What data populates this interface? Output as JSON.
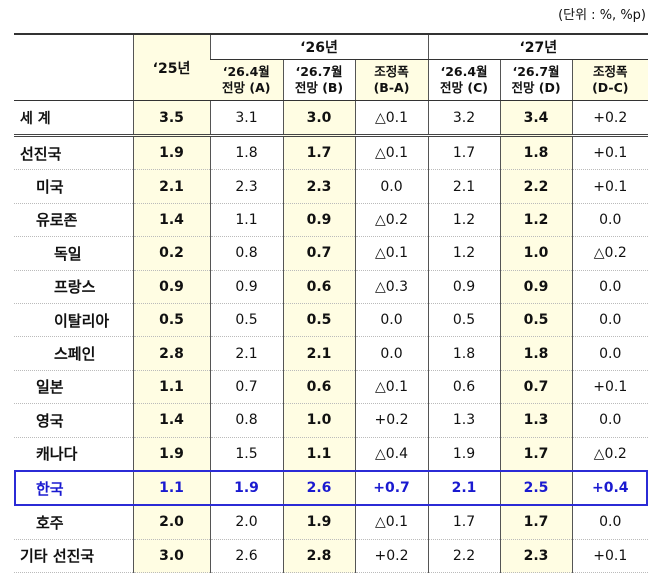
{
  "unit": "(단위 : %, %p)",
  "header": {
    "col25": "‘25년",
    "y26": "‘26년",
    "y27": "‘27년",
    "sub": [
      [
        "‘26.4월",
        "전망 (A)"
      ],
      [
        "‘26.7월",
        "전망 (B)"
      ],
      [
        "조정폭",
        "(B-A)"
      ],
      [
        "‘26.4월",
        "전망 (C)"
      ],
      [
        "‘26.7월",
        "전망 (D)"
      ],
      [
        "조정폭",
        "(D-C)"
      ]
    ]
  },
  "table": {
    "rows": [
      [
        "세  계",
        "3.5",
        "3.1",
        "3.0",
        "△0.1",
        "3.2",
        "3.4",
        "+0.2"
      ],
      [
        "선진국",
        "1.9",
        "1.8",
        "1.7",
        "△0.1",
        "1.7",
        "1.8",
        "+0.1"
      ],
      [
        "미국",
        "2.1",
        "2.3",
        "2.3",
        "0.0",
        "2.1",
        "2.2",
        "+0.1"
      ],
      [
        "유로존",
        "1.4",
        "1.1",
        "0.9",
        "△0.2",
        "1.2",
        "1.2",
        "0.0"
      ],
      [
        "독일",
        "0.2",
        "0.8",
        "0.7",
        "△0.1",
        "1.2",
        "1.0",
        "△0.2"
      ],
      [
        "프랑스",
        "0.9",
        "0.9",
        "0.6",
        "△0.3",
        "0.9",
        "0.9",
        "0.0"
      ],
      [
        "이탈리아",
        "0.5",
        "0.5",
        "0.5",
        "0.0",
        "0.5",
        "0.5",
        "0.0"
      ],
      [
        "스페인",
        "2.8",
        "2.1",
        "2.1",
        "0.0",
        "1.8",
        "1.8",
        "0.0"
      ],
      [
        "일본",
        "1.1",
        "0.7",
        "0.6",
        "△0.1",
        "0.6",
        "0.7",
        "+0.1"
      ],
      [
        "영국",
        "1.4",
        "0.8",
        "1.0",
        "+0.2",
        "1.3",
        "1.3",
        "0.0"
      ],
      [
        "캐나다",
        "1.9",
        "1.5",
        "1.1",
        "△0.4",
        "1.9",
        "1.7",
        "△0.2"
      ],
      [
        "한국",
        "1.1",
        "1.9",
        "2.6",
        "+0.7",
        "2.1",
        "2.5",
        "+0.4"
      ],
      [
        "호주",
        "2.0",
        "2.0",
        "1.9",
        "△0.1",
        "1.7",
        "1.7",
        "0.0"
      ],
      [
        "기타 선진국",
        "3.0",
        "2.6",
        "2.8",
        "+0.2",
        "2.2",
        "2.3",
        "+0.1"
      ]
    ]
  }
}
